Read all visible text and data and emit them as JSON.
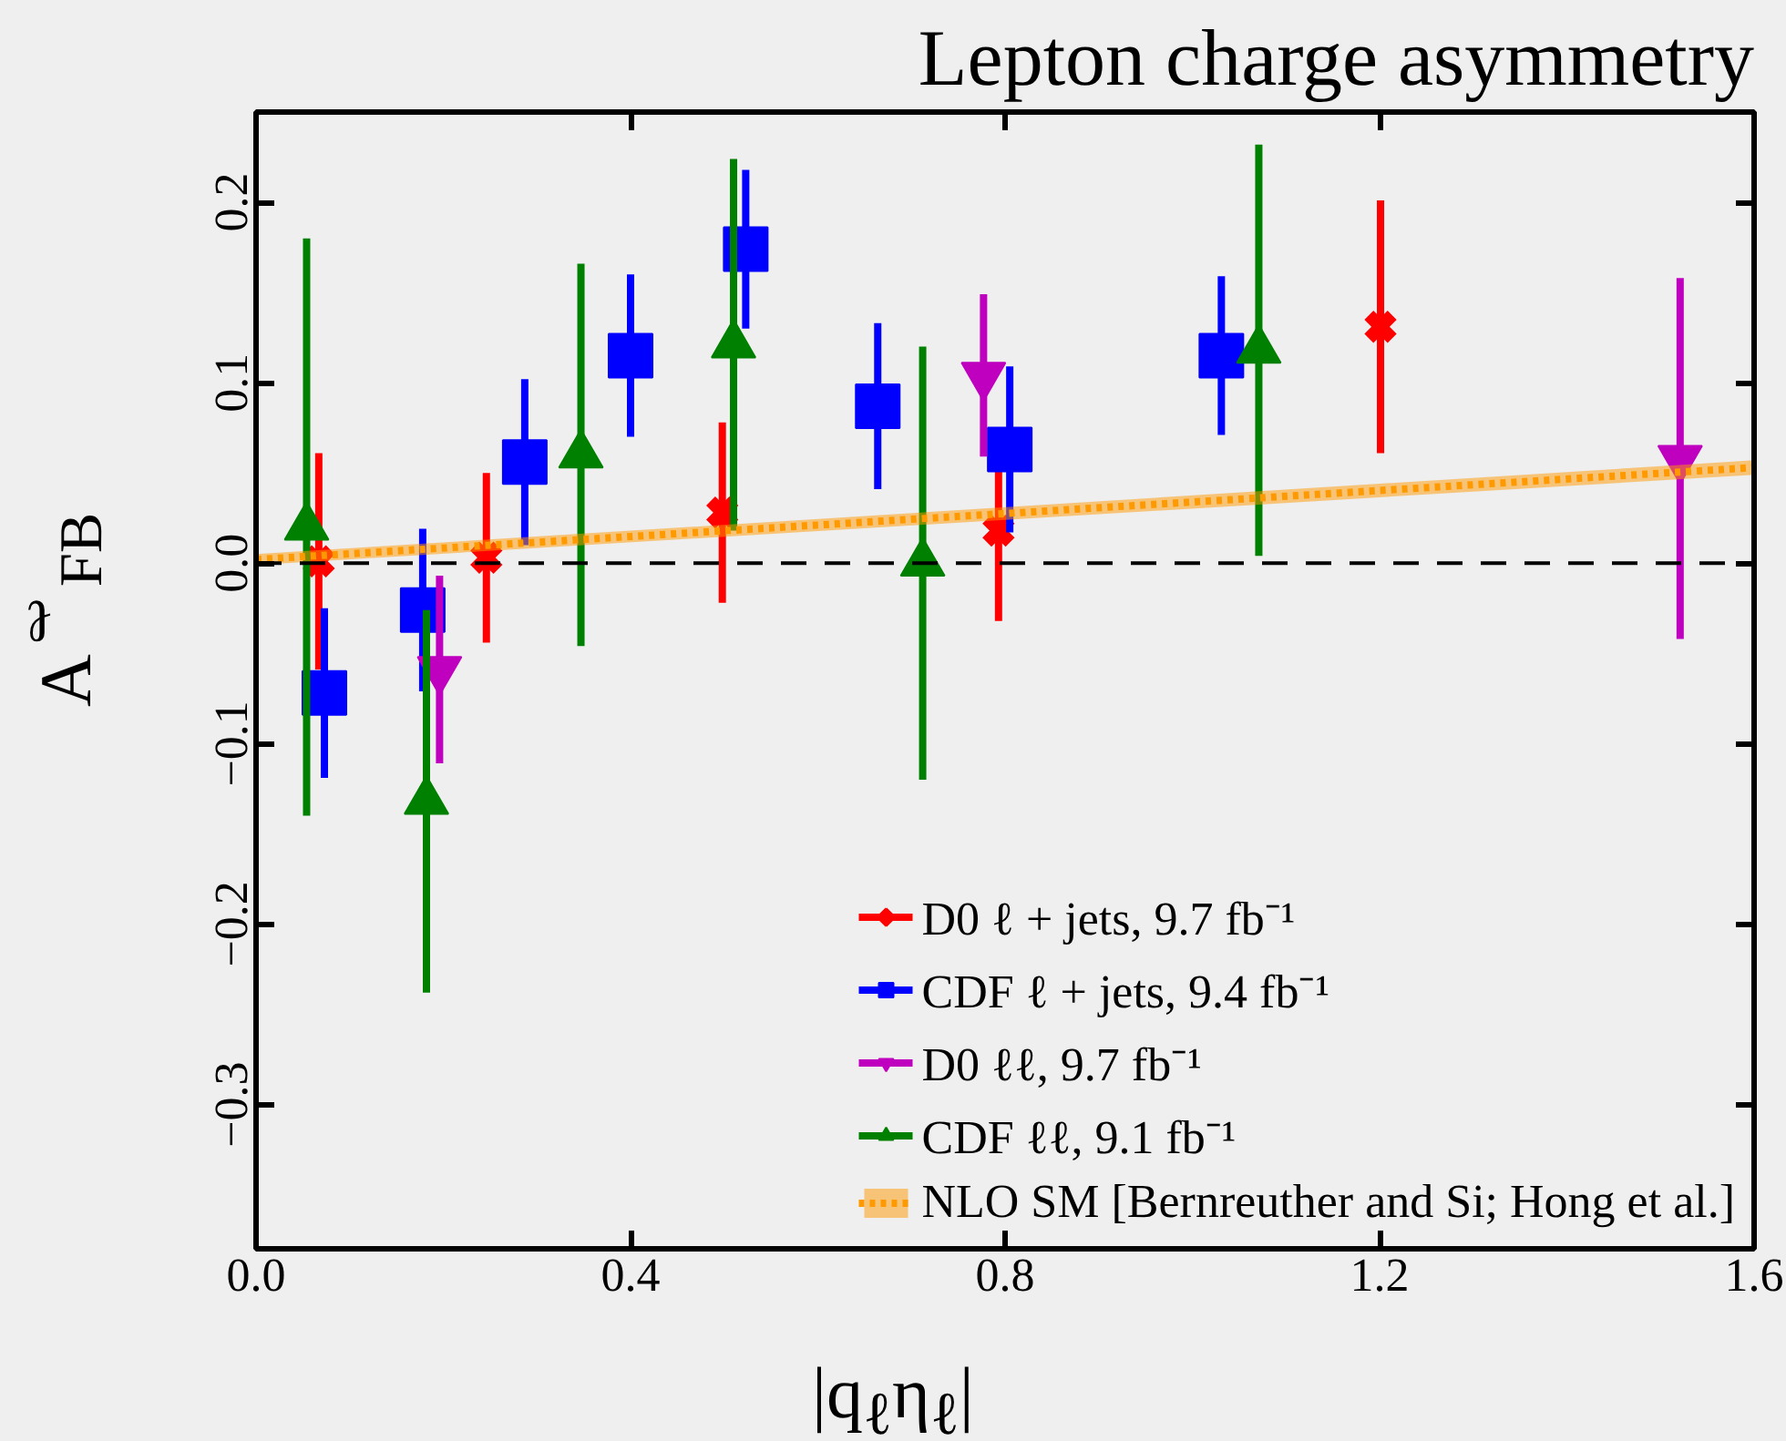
{
  "chart_data": {
    "type": "scatter",
    "title": "Lepton charge asymmetry",
    "xlabel": "|q$_{ℓ}$η$_{ℓ}$|",
    "ylabel": "A$^{ℓ}$$_{FB}$",
    "xlim": [
      0,
      1.6
    ],
    "ylim": [
      -0.38,
      0.25
    ],
    "xticks": [
      {
        "value": 0,
        "label": "0.0"
      },
      {
        "value": 0.4,
        "label": "0.4"
      },
      {
        "value": 0.8,
        "label": "0.8"
      },
      {
        "value": 1.2,
        "label": "1.2"
      },
      {
        "value": 1.6,
        "label": "1.6"
      }
    ],
    "yticks": [
      {
        "value": -0.3,
        "label": "−0.3"
      },
      {
        "value": -0.2,
        "label": "−0.2"
      },
      {
        "value": -0.1,
        "label": "−0.1"
      },
      {
        "value": 0,
        "label": "0.0"
      },
      {
        "value": 0.1,
        "label": "0.1"
      },
      {
        "value": 0.2,
        "label": "0.2"
      }
    ],
    "grid": false,
    "legend": "bottom right",
    "ref_lines": [
      {
        "axis": "y",
        "value": 0,
        "color": "#000000",
        "line_style": "dashed"
      }
    ],
    "series": [
      {
        "name": "D0 ℓ + jets, 9.7 fb⁻¹",
        "type": "scatter",
        "marker": "cross",
        "color": "#ff0000",
        "x": [
          0.067,
          0.246,
          0.498,
          0.793,
          1.201
        ],
        "values": [
          0.001,
          0.003,
          0.028,
          0.018,
          0.131
        ],
        "errors": [
          0.06,
          0.047,
          0.05,
          0.05,
          0.07
        ]
      },
      {
        "name": "CDF ℓ + jets, 9.4 fb⁻¹",
        "type": "scatter",
        "marker": "square",
        "color": "#0000ff",
        "x": [
          0.073,
          0.178,
          0.287,
          0.4,
          0.523,
          0.664,
          0.805,
          1.031
        ],
        "values": [
          -0.072,
          -0.026,
          0.056,
          0.115,
          0.174,
          0.087,
          0.063,
          0.115
        ],
        "errors": [
          0.047,
          0.045,
          0.046,
          0.045,
          0.044,
          0.046,
          0.046,
          0.044
        ]
      },
      {
        "name": "D0 ℓℓ, 9.7 fb⁻¹",
        "type": "scatter",
        "marker": "triangle_down",
        "color": "#bf00bf",
        "x": [
          0.196,
          0.777,
          1.521
        ],
        "values": [
          -0.059,
          0.104,
          0.058
        ],
        "errors": [
          0.052,
          0.045,
          0.1
        ]
      },
      {
        "name": "CDF ℓℓ, 9.1 fb⁻¹",
        "type": "scatter",
        "marker": "triangle",
        "color": "#008000",
        "x": [
          0.054,
          0.182,
          0.347,
          0.51,
          0.712,
          1.071
        ],
        "values": [
          0.02,
          -0.132,
          0.06,
          0.121,
          0.0,
          0.118
        ],
        "errors": [
          0.16,
          0.106,
          0.106,
          0.103,
          0.12,
          0.114
        ]
      },
      {
        "name": "NLO SM [Bernreuther and Si; Hong et al.]",
        "type": "line",
        "marker": "none",
        "line_style": "dotted",
        "color": "#ff9900",
        "x": [
          0,
          1.6
        ],
        "values": [
          0.002,
          0.053
        ],
        "lower": [
          -0.001,
          0.049
        ],
        "upper": [
          0.005,
          0.057
        ]
      }
    ]
  }
}
